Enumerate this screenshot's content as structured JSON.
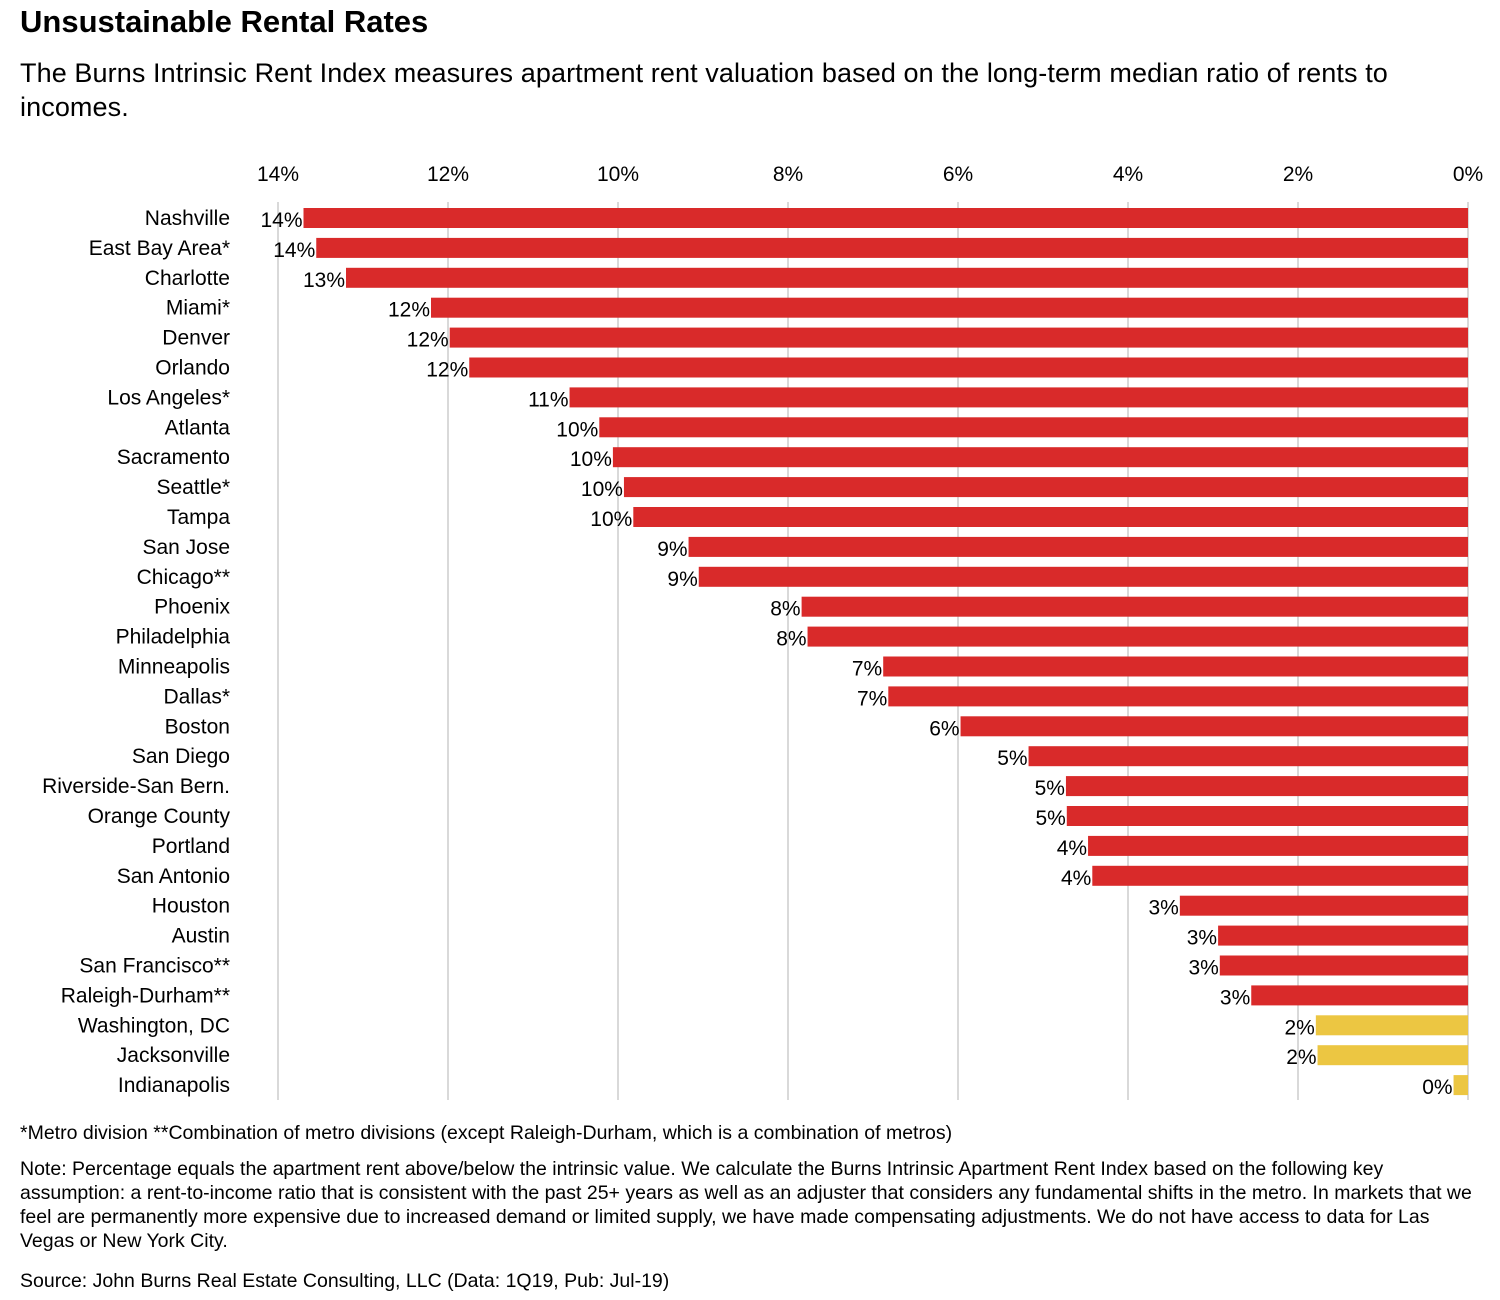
{
  "title": "Unsustainable Rental Rates",
  "subtitle": "The Burns Intrinsic Rent Index measures apartment rent valuation based on the long-term median ratio of rents to incomes.",
  "colors": {
    "red": "#d92a2a",
    "yellow": "#ecc642",
    "grid": "#d9d9d9"
  },
  "chart_data": {
    "type": "bar",
    "orientation": "horizontal",
    "x_axis_position": "top",
    "x_direction": "reversed",
    "xlim": [
      0,
      14
    ],
    "xticks": [
      14,
      12,
      10,
      8,
      6,
      4,
      2,
      0
    ],
    "xtick_labels": [
      "14%",
      "12%",
      "10%",
      "8%",
      "6%",
      "4%",
      "2%",
      "0%"
    ],
    "grid": true,
    "categories": [
      "Nashville",
      "East Bay Area*",
      "Charlotte",
      "Miami*",
      "Denver",
      "Orlando",
      "Los Angeles*",
      "Atlanta",
      "Sacramento",
      "Seattle*",
      "Tampa",
      "San Jose",
      "Chicago**",
      "Phoenix",
      "Philadelphia",
      "Minneapolis",
      "Dallas*",
      "Boston",
      "San Diego",
      "Riverside-San Bern.",
      "Orange County",
      "Portland",
      "San Antonio",
      "Houston",
      "Austin",
      "San Francisco**",
      "Raleigh-Durham**",
      "Washington, DC",
      "Jacksonville",
      "Indianapolis"
    ],
    "values": [
      13.7,
      13.55,
      13.2,
      12.2,
      11.98,
      11.75,
      10.57,
      10.22,
      10.06,
      9.93,
      9.82,
      9.17,
      9.05,
      7.84,
      7.77,
      6.88,
      6.82,
      5.97,
      5.17,
      4.73,
      4.72,
      4.47,
      4.42,
      3.39,
      2.94,
      2.92,
      2.55,
      1.79,
      1.77,
      0.17
    ],
    "value_labels": [
      "14%",
      "14%",
      "13%",
      "12%",
      "12%",
      "12%",
      "11%",
      "10%",
      "10%",
      "10%",
      "10%",
      "9%",
      "9%",
      "8%",
      "8%",
      "7%",
      "7%",
      "6%",
      "5%",
      "5%",
      "5%",
      "4%",
      "4%",
      "3%",
      "3%",
      "3%",
      "3%",
      "2%",
      "2%",
      "0%"
    ],
    "bar_colors": [
      "red",
      "red",
      "red",
      "red",
      "red",
      "red",
      "red",
      "red",
      "red",
      "red",
      "red",
      "red",
      "red",
      "red",
      "red",
      "red",
      "red",
      "red",
      "red",
      "red",
      "red",
      "red",
      "red",
      "red",
      "red",
      "red",
      "red",
      "yellow",
      "yellow",
      "yellow"
    ]
  },
  "footnotes": {
    "metro": "*Metro division **Combination of metro divisions (except Raleigh-Durham, which is a combination of metros)",
    "note": "Note: Percentage equals the apartment rent above/below the intrinsic value. We calculate the Burns Intrinsic Apartment Rent Index based on the following key assumption: a rent-to-income ratio that is consistent with the past 25+ years as well as an adjuster that considers any fundamental shifts in the metro. In markets that we feel are permanently more expensive due to increased demand or limited supply, we have made compensating adjustments. We do not have access to data for Las Vegas or New York City.",
    "source": "Source: John Burns Real Estate Consulting, LLC (Data: 1Q19, Pub: Jul-19)"
  }
}
